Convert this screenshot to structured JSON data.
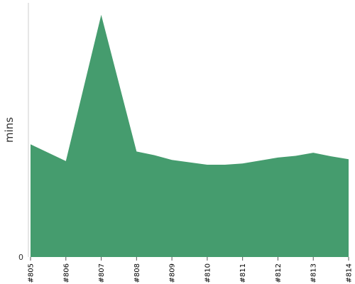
{
  "chart_data": {
    "type": "area",
    "categories": [
      "#805",
      "#806",
      "#807",
      "#808",
      "#809",
      "#810",
      "#811",
      "#812",
      "#813",
      "#814"
    ],
    "x": [
      0,
      1,
      2,
      3,
      3.5,
      4,
      5,
      5.5,
      6,
      7,
      7.5,
      8,
      8.5,
      9
    ],
    "values": [
      47,
      40,
      101,
      44,
      42.5,
      40.5,
      38.5,
      38.5,
      39,
      41.5,
      42.2,
      43.5,
      42,
      40.8
    ],
    "series": [
      {
        "values": [
          47,
          40,
          101,
          44,
          42.5,
          40.5,
          38.5,
          38.5,
          39,
          41.5,
          42.2,
          43.5,
          42,
          40.8
        ]
      }
    ],
    "ylabel": "mins",
    "xlabel": "",
    "title": "",
    "ylim": [
      0,
      106
    ],
    "y_tick_labels": [
      "0"
    ],
    "grid": false,
    "fill_color": "#459c6e"
  }
}
